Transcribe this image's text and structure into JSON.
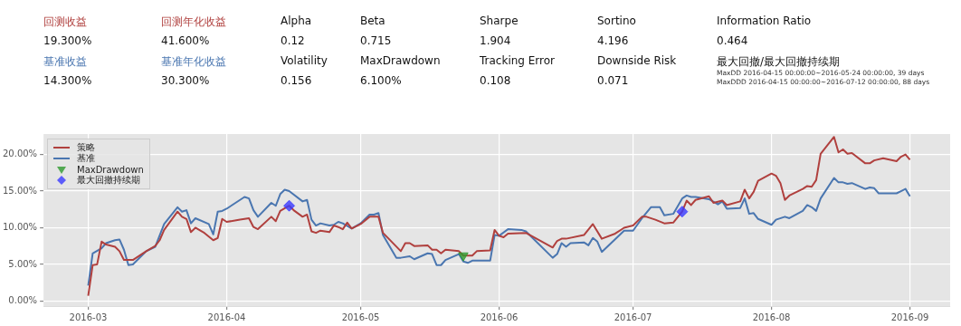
{
  "chart_data": {
    "type": "line",
    "annotations": [
      "回测收益",
      "回测年化收益",
      "Alpha",
      "Beta",
      "Sharpe",
      "Sortino",
      "Information Ratio",
      "19.300%",
      "41.600%",
      "0.12",
      "0.715",
      "1.904",
      "4.196",
      "0.464",
      "基准收益",
      "基准年化收益",
      "Volatility",
      "MaxDrawdown",
      "Tracking Error",
      "Downside Risk",
      "最大回撤/最大回撤持续期",
      "14.300%",
      "30.300%",
      "0.156",
      "6.100%",
      "0.108",
      "0.071",
      "MaxDD  2016-04-15 00:00:00~2016-05-24 00:00:00, 39 days",
      "MaxDDD  2016-04-15 00:00:00~2016-07-12 00:00:00, 88 days"
    ],
    "xlim": [
      "2016-02-20",
      "2016-09-10"
    ],
    "xticks": [
      "2016-03",
      "2016-04",
      "2016-05",
      "2016-06",
      "2016-07",
      "2016-08",
      "2016-09"
    ],
    "ylim": [
      -0.7,
      22.8
    ],
    "yticks": [
      {
        "value": 0,
        "label": "0.00%"
      },
      {
        "value": 5,
        "label": "5.00%"
      },
      {
        "value": 10,
        "label": "10.00%"
      },
      {
        "value": 15,
        "label": "15.00%"
      },
      {
        "value": 20,
        "label": "20.00%"
      }
    ],
    "grid": true,
    "legend": "top left",
    "series": [
      {
        "name": "策略",
        "color": "#b0403e",
        "x": [
          "2016-03-01",
          "2016-03-02",
          "2016-03-03",
          "2016-03-04",
          "2016-03-05",
          "2016-03-07",
          "2016-03-08",
          "2016-03-09",
          "2016-03-11",
          "2016-03-12",
          "2016-03-14",
          "2016-03-16",
          "2016-03-17",
          "2016-03-18",
          "2016-03-21",
          "2016-03-22",
          "2016-03-23",
          "2016-03-24",
          "2016-03-25",
          "2016-03-27",
          "2016-03-29",
          "2016-03-30",
          "2016-03-31",
          "2016-04-01",
          "2016-04-04",
          "2016-04-06",
          "2016-04-07",
          "2016-04-08",
          "2016-04-11",
          "2016-04-12",
          "2016-04-13",
          "2016-04-15",
          "2016-04-16",
          "2016-04-18",
          "2016-04-19",
          "2016-04-20",
          "2016-04-21",
          "2016-04-22",
          "2016-04-24",
          "2016-04-25",
          "2016-04-26",
          "2016-04-27",
          "2016-04-28",
          "2016-04-29",
          "2016-05-01",
          "2016-05-03",
          "2016-05-05",
          "2016-05-06",
          "2016-05-10",
          "2016-05-11",
          "2016-05-12",
          "2016-05-13",
          "2016-05-16",
          "2016-05-17",
          "2016-05-18",
          "2016-05-19",
          "2016-05-20",
          "2016-05-23",
          "2016-05-24",
          "2016-05-26",
          "2016-05-27",
          "2016-05-30",
          "2016-05-31",
          "2016-06-01",
          "2016-06-02",
          "2016-06-03",
          "2016-06-07",
          "2016-06-13",
          "2016-06-14",
          "2016-06-15",
          "2016-06-16",
          "2016-06-20",
          "2016-06-22",
          "2016-06-24",
          "2016-06-27",
          "2016-06-29",
          "2016-07-01",
          "2016-07-03",
          "2016-07-04",
          "2016-07-06",
          "2016-07-08",
          "2016-07-10",
          "2016-07-12",
          "2016-07-13",
          "2016-07-14",
          "2016-07-15",
          "2016-07-18",
          "2016-07-19",
          "2016-07-21",
          "2016-07-22",
          "2016-07-25",
          "2016-07-26",
          "2016-07-27",
          "2016-07-28",
          "2016-07-29",
          "2016-08-01",
          "2016-08-02",
          "2016-08-03",
          "2016-08-04",
          "2016-08-05",
          "2016-08-08",
          "2016-08-09",
          "2016-08-10",
          "2016-08-11",
          "2016-08-12",
          "2016-08-15",
          "2016-08-16",
          "2016-08-17",
          "2016-08-18",
          "2016-08-19",
          "2016-08-22",
          "2016-08-23",
          "2016-08-24",
          "2016-08-26",
          "2016-08-29",
          "2016-08-30",
          "2016-08-31",
          "2016-09-01"
        ],
        "values": [
          0.7,
          4.9,
          5.0,
          8.1,
          7.7,
          7.4,
          6.8,
          5.6,
          5.6,
          6.0,
          6.8,
          7.5,
          8.3,
          9.7,
          12.2,
          11.5,
          11.2,
          9.4,
          10.0,
          9.3,
          8.3,
          8.6,
          11.2,
          10.8,
          11.1,
          11.3,
          10.1,
          9.8,
          11.5,
          10.9,
          12.3,
          13.0,
          12.4,
          11.5,
          11.8,
          9.5,
          9.3,
          9.6,
          9.4,
          10.3,
          10.1,
          9.8,
          10.7,
          9.9,
          10.5,
          11.5,
          11.5,
          9.3,
          6.8,
          7.9,
          7.9,
          7.5,
          7.6,
          7.0,
          7.0,
          6.5,
          7.0,
          6.8,
          6.2,
          6.2,
          6.8,
          6.9,
          9.7,
          8.9,
          8.7,
          9.2,
          9.3,
          7.3,
          8.2,
          8.5,
          8.5,
          9.0,
          10.5,
          8.5,
          9.2,
          10.0,
          10.3,
          11.5,
          11.5,
          11.1,
          10.6,
          10.7,
          12.2,
          13.7,
          13.1,
          13.8,
          14.3,
          13.4,
          13.7,
          13.1,
          13.6,
          15.2,
          14.0,
          14.9,
          16.4,
          17.4,
          17.1,
          16.1,
          13.8,
          14.4,
          15.3,
          15.7,
          15.6,
          16.5,
          20.1,
          22.4,
          20.3,
          20.7,
          20.1,
          20.2,
          18.8,
          18.8,
          19.2,
          19.5,
          19.1,
          19.7,
          20.0,
          19.3
        ]
      },
      {
        "name": "基准",
        "color": "#4a76b0",
        "x": [
          "2016-03-01",
          "2016-03-02",
          "2016-03-04",
          "2016-03-05",
          "2016-03-07",
          "2016-03-08",
          "2016-03-09",
          "2016-03-10",
          "2016-03-11",
          "2016-03-14",
          "2016-03-16",
          "2016-03-18",
          "2016-03-21",
          "2016-03-22",
          "2016-03-23",
          "2016-03-24",
          "2016-03-25",
          "2016-03-28",
          "2016-03-29",
          "2016-03-30",
          "2016-03-31",
          "2016-04-01",
          "2016-04-05",
          "2016-04-06",
          "2016-04-07",
          "2016-04-08",
          "2016-04-11",
          "2016-04-12",
          "2016-04-13",
          "2016-04-14",
          "2016-04-15",
          "2016-04-18",
          "2016-04-19",
          "2016-04-20",
          "2016-04-21",
          "2016-04-22",
          "2016-04-24",
          "2016-04-25",
          "2016-04-26",
          "2016-04-27",
          "2016-04-29",
          "2016-05-01",
          "2016-05-03",
          "2016-05-04",
          "2016-05-05",
          "2016-05-06",
          "2016-05-09",
          "2016-05-10",
          "2016-05-12",
          "2016-05-13",
          "2016-05-16",
          "2016-05-17",
          "2016-05-18",
          "2016-05-19",
          "2016-05-20",
          "2016-05-23",
          "2016-05-24",
          "2016-05-25",
          "2016-05-26",
          "2016-05-30",
          "2016-05-31",
          "2016-06-01",
          "2016-06-03",
          "2016-06-06",
          "2016-06-07",
          "2016-06-13",
          "2016-06-14",
          "2016-06-15",
          "2016-06-16",
          "2016-06-17",
          "2016-06-20",
          "2016-06-21",
          "2016-06-22",
          "2016-06-23",
          "2016-06-24",
          "2016-06-29",
          "2016-07-01",
          "2016-07-03",
          "2016-07-05",
          "2016-07-07",
          "2016-07-08",
          "2016-07-10",
          "2016-07-12",
          "2016-07-13",
          "2016-07-14",
          "2016-07-15",
          "2016-07-18",
          "2016-07-20",
          "2016-07-21",
          "2016-07-22",
          "2016-07-25",
          "2016-07-26",
          "2016-07-27",
          "2016-07-28",
          "2016-07-29",
          "2016-08-01",
          "2016-08-02",
          "2016-08-04",
          "2016-08-05",
          "2016-08-08",
          "2016-08-09",
          "2016-08-10",
          "2016-08-11",
          "2016-08-12",
          "2016-08-15",
          "2016-08-16",
          "2016-08-17",
          "2016-08-18",
          "2016-08-19",
          "2016-08-22",
          "2016-08-23",
          "2016-08-24",
          "2016-08-25",
          "2016-08-29",
          "2016-08-30",
          "2016-08-31",
          "2016-09-01"
        ],
        "values": [
          2.1,
          6.5,
          7.2,
          7.9,
          8.3,
          8.4,
          7.0,
          4.9,
          5.0,
          6.8,
          7.4,
          10.5,
          12.8,
          12.2,
          12.4,
          10.6,
          11.3,
          10.5,
          9.1,
          12.2,
          12.3,
          12.6,
          14.2,
          14.0,
          12.4,
          11.5,
          13.4,
          13.0,
          14.6,
          15.2,
          15.0,
          13.6,
          13.8,
          11.1,
          10.3,
          10.6,
          10.3,
          10.4,
          10.8,
          10.6,
          9.9,
          10.6,
          11.8,
          11.8,
          12.0,
          9.0,
          5.9,
          5.9,
          6.1,
          5.7,
          6.5,
          6.4,
          4.9,
          4.9,
          5.6,
          6.4,
          5.4,
          5.2,
          5.5,
          5.5,
          9.0,
          8.9,
          9.8,
          9.7,
          9.5,
          5.9,
          6.4,
          7.9,
          7.4,
          7.9,
          8.0,
          7.6,
          8.6,
          8.1,
          6.7,
          9.6,
          9.6,
          11.3,
          12.8,
          12.8,
          11.7,
          11.9,
          14.0,
          14.4,
          14.2,
          14.2,
          13.9,
          13.2,
          13.6,
          12.6,
          12.7,
          14.0,
          11.9,
          12.0,
          11.2,
          10.4,
          11.1,
          11.5,
          11.3,
          12.3,
          13.1,
          12.8,
          12.3,
          14.0,
          16.8,
          16.2,
          16.2,
          16.0,
          16.1,
          15.3,
          15.5,
          15.4,
          14.7,
          14.7,
          15.0,
          15.3,
          14.3
        ]
      },
      {
        "name": "MaxDrawdown",
        "type": "scatter",
        "marker": "triangle",
        "color": "#2e9a2e",
        "x": [
          "2016-05-24"
        ],
        "values": [
          6.2
        ]
      },
      {
        "name": "最大回撤持续期",
        "type": "scatter",
        "marker": "diamond",
        "color": "#3a3aff",
        "x": [
          "2016-04-15",
          "2016-07-12"
        ],
        "values": [
          13.0,
          12.2
        ]
      }
    ]
  }
}
